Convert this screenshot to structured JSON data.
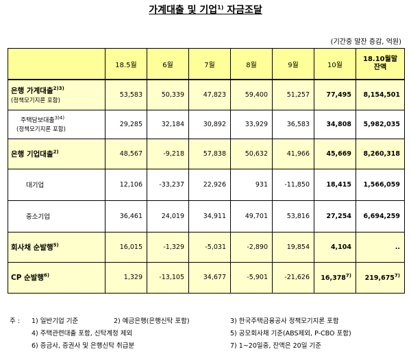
{
  "title": "가계대출 및 기업",
  "title_sup": "1)",
  "title_suffix": " 자금조달",
  "unit": "(기간중 말잔 증감, 억원)",
  "columns": [
    "18.5월",
    "6월",
    "7월",
    "8월",
    "9월",
    "10월",
    "18.10월말",
    "잔액"
  ],
  "rows": [
    {
      "label": "은행 가계대출",
      "sup": "2)3)",
      "sublabel": "(정책모기지론 포함)",
      "values": [
        "53,583",
        "50,339",
        "47,823",
        "59,400",
        "51,257",
        "77,495",
        "8,154,501"
      ]
    },
    {
      "label": "주택담보대출",
      "sup": "3)4)",
      "sublabel": "(정책모기지론 포함)",
      "values": [
        "29,285",
        "32,184",
        "30,892",
        "33,929",
        "36,583",
        "34,808",
        "5,982,035"
      ]
    },
    {
      "label": "은행 기업대출",
      "sup": "2)",
      "values": [
        "48,567",
        "-9,218",
        "57,838",
        "50,632",
        "41,966",
        "45,669",
        "8,260,318"
      ]
    },
    {
      "label": "대기업",
      "values": [
        "12,106",
        "-33,237",
        "22,926",
        "931",
        "-11,850",
        "18,415",
        "1,566,059"
      ]
    },
    {
      "label": "중소기업",
      "values": [
        "36,461",
        "24,019",
        "34,911",
        "49,701",
        "53,816",
        "27,254",
        "6,694,259"
      ]
    },
    {
      "label": "회사채 순발행",
      "sup": "5)",
      "values": [
        "16,015",
        "-1,329",
        "-5,031",
        "-2,890",
        "19,854",
        "4,104",
        ".."
      ]
    },
    {
      "label": "CP 순발행",
      "sup": "6)",
      "values": [
        "1,329",
        "-13,105",
        "34,677",
        "-5,901",
        "-21,626",
        "16,378",
        "219,675"
      ],
      "sup_oct": "7)",
      "sup_bal": "7)"
    }
  ],
  "notes": {
    "prefix": "주 :",
    "n1": "1) 일반기업 기준",
    "n2": "2) 예금은행(은행신탁 포함)",
    "n3": "3) 한국주택금융공사 정책모기지론 포함",
    "n4": "4) 주택관련대출 포함, 신탁계정 제외",
    "n5": "5) 공모회사채 기준(ABS제외, P-CBO 포함)",
    "n6": "6) 증금사, 증권사 및 은행신탁 취급분",
    "n7": "7) 1~20일중, 잔액은 20일 기준"
  }
}
